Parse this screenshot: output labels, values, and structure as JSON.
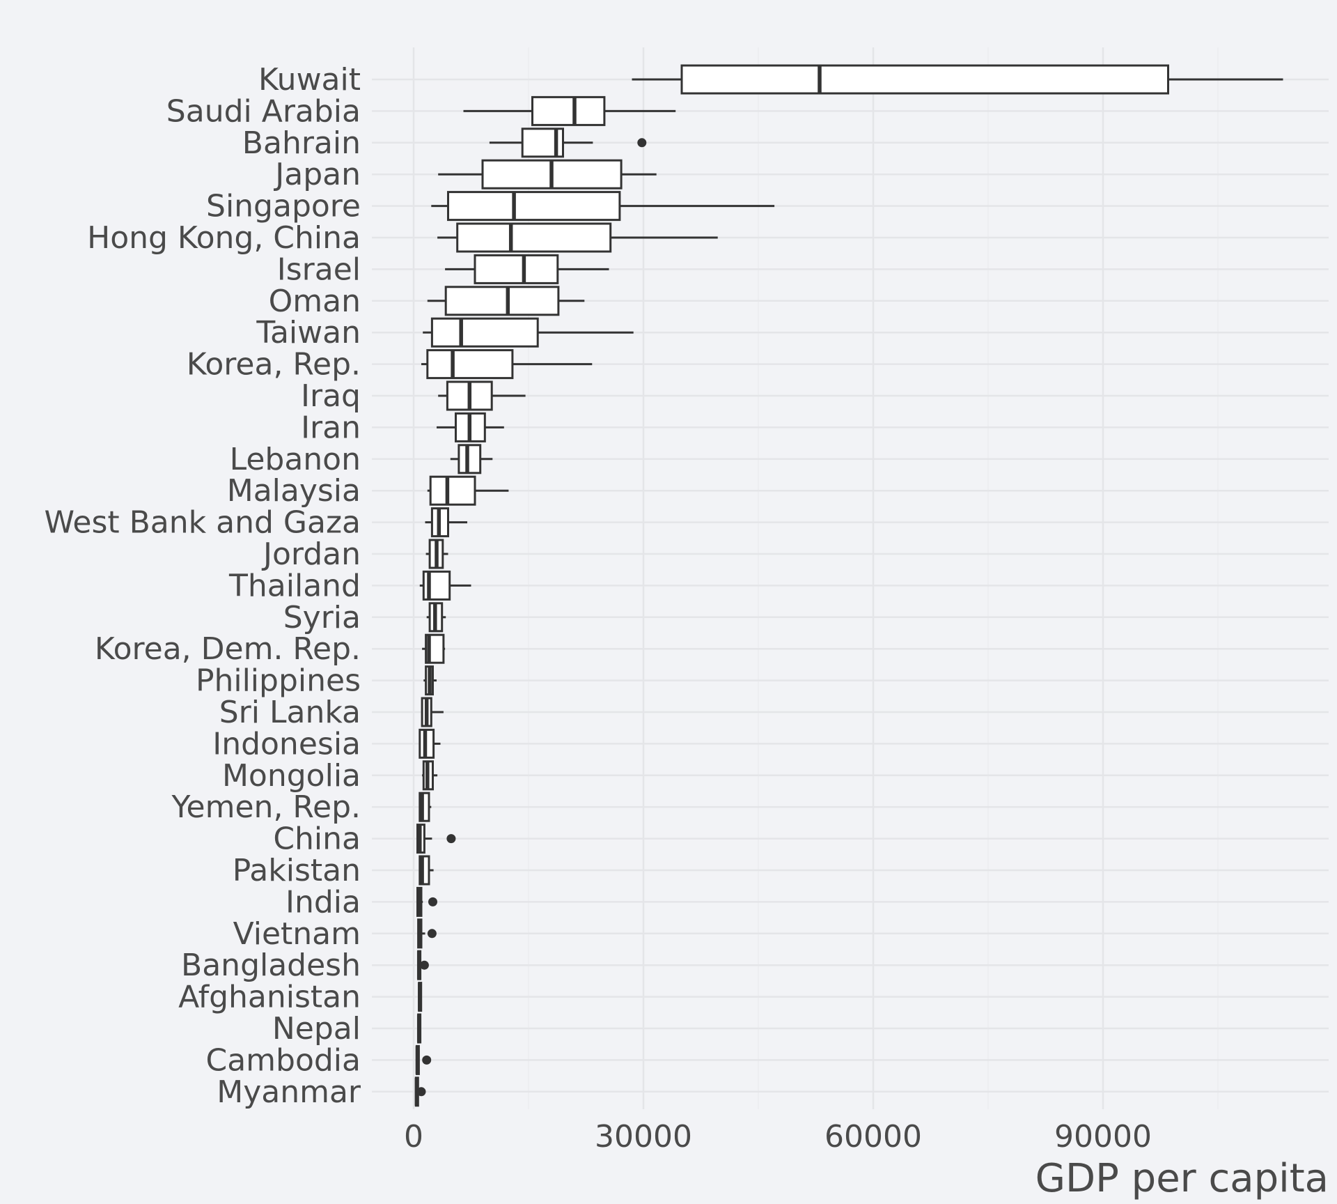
{
  "chart_data": {
    "type": "boxplot",
    "orientation": "horizontal",
    "title": "",
    "xlabel": "GDP per capita",
    "ylabel": "",
    "xlim": [
      -5000,
      115000
    ],
    "x_ticks": [
      0,
      30000,
      60000,
      90000
    ],
    "x_tick_labels": [
      "0",
      "30000",
      "60000",
      "90000"
    ],
    "grid": true,
    "legend": "none",
    "colors": {
      "background": "#f2f3f6",
      "box_fill": "#ffffff",
      "line": "#333333",
      "grid": "#e4e5e8",
      "text": "#4a4a4a"
    },
    "series": [
      {
        "name": "Kuwait",
        "min": 28500,
        "q1": 35000,
        "median": 53000,
        "q3": 98500,
        "max": 113500,
        "outliers": []
      },
      {
        "name": "Saudi Arabia",
        "min": 6500,
        "q1": 15500,
        "median": 21000,
        "q3": 24900,
        "max": 34200,
        "outliers": []
      },
      {
        "name": "Bahrain",
        "min": 9900,
        "q1": 14200,
        "median": 18600,
        "q3": 19500,
        "max": 23400,
        "outliers": [
          29800
        ]
      },
      {
        "name": "Japan",
        "min": 3200,
        "q1": 9000,
        "median": 18000,
        "q3": 27100,
        "max": 31700,
        "outliers": []
      },
      {
        "name": "Singapore",
        "min": 2300,
        "q1": 4500,
        "median": 13100,
        "q3": 26900,
        "max": 47100,
        "outliers": []
      },
      {
        "name": "Hong Kong, China",
        "min": 3100,
        "q1": 5700,
        "median": 12700,
        "q3": 25700,
        "max": 39700,
        "outliers": []
      },
      {
        "name": "Israel",
        "min": 4100,
        "q1": 8000,
        "median": 14400,
        "q3": 18800,
        "max": 25500,
        "outliers": []
      },
      {
        "name": "Oman",
        "min": 1800,
        "q1": 4200,
        "median": 12300,
        "q3": 18900,
        "max": 22300,
        "outliers": []
      },
      {
        "name": "Taiwan",
        "min": 1200,
        "q1": 2400,
        "median": 6200,
        "q3": 16200,
        "max": 28700,
        "outliers": []
      },
      {
        "name": "Korea, Rep.",
        "min": 1000,
        "q1": 1800,
        "median": 5100,
        "q3": 12900,
        "max": 23300,
        "outliers": []
      },
      {
        "name": "Iraq",
        "min": 3200,
        "q1": 4400,
        "median": 7300,
        "q3": 10200,
        "max": 14600,
        "outliers": []
      },
      {
        "name": "Iran",
        "min": 3000,
        "q1": 5500,
        "median": 7300,
        "q3": 9300,
        "max": 11800,
        "outliers": []
      },
      {
        "name": "Lebanon",
        "min": 4800,
        "q1": 5900,
        "median": 7000,
        "q3": 8700,
        "max": 10300,
        "outliers": []
      },
      {
        "name": "Malaysia",
        "min": 1800,
        "q1": 2200,
        "median": 4400,
        "q3": 8000,
        "max": 12400,
        "outliers": []
      },
      {
        "name": "West Bank and Gaza",
        "min": 1500,
        "q1": 2400,
        "median": 3300,
        "q3": 4500,
        "max": 7000,
        "outliers": []
      },
      {
        "name": "Jordan",
        "min": 1600,
        "q1": 2100,
        "median": 3000,
        "q3": 3800,
        "max": 4500,
        "outliers": []
      },
      {
        "name": "Thailand",
        "min": 800,
        "q1": 1300,
        "median": 2000,
        "q3": 4700,
        "max": 7500,
        "outliers": []
      },
      {
        "name": "Syria",
        "min": 1700,
        "q1": 2100,
        "median": 2800,
        "q3": 3700,
        "max": 4200,
        "outliers": []
      },
      {
        "name": "Korea, Dem. Rep.",
        "min": 1100,
        "q1": 1600,
        "median": 2000,
        "q3": 3900,
        "max": 4100,
        "outliers": []
      },
      {
        "name": "Philippines",
        "min": 1300,
        "q1": 1600,
        "median": 2100,
        "q3": 2500,
        "max": 3000,
        "outliers": []
      },
      {
        "name": "Sri Lanka",
        "min": 1100,
        "q1": 1100,
        "median": 1700,
        "q3": 2300,
        "max": 3900,
        "outliers": []
      },
      {
        "name": "Indonesia",
        "min": 700,
        "q1": 800,
        "median": 1500,
        "q3": 2600,
        "max": 3500,
        "outliers": []
      },
      {
        "name": "Mongolia",
        "min": 1100,
        "q1": 1300,
        "median": 1800,
        "q3": 2500,
        "max": 3100,
        "outliers": []
      },
      {
        "name": "Yemen, Rep.",
        "min": 800,
        "q1": 800,
        "median": 1100,
        "q3": 2000,
        "max": 2300,
        "outliers": []
      },
      {
        "name": "China",
        "min": 400,
        "q1": 500,
        "median": 800,
        "q3": 1400,
        "max": 2400,
        "outliers": [
          4900
        ]
      },
      {
        "name": "Pakistan",
        "min": 700,
        "q1": 800,
        "median": 1100,
        "q3": 2000,
        "max": 2600,
        "outliers": []
      },
      {
        "name": "India",
        "min": 500,
        "q1": 500,
        "median": 800,
        "q3": 1000,
        "max": 1200,
        "outliers": [
          2500
        ]
      },
      {
        "name": "Vietnam",
        "min": 600,
        "q1": 600,
        "median": 800,
        "q3": 1000,
        "max": 1500,
        "outliers": [
          2400
        ]
      },
      {
        "name": "Bangladesh",
        "min": 600,
        "q1": 600,
        "median": 700,
        "q3": 800,
        "max": 900,
        "outliers": [
          1400
        ]
      },
      {
        "name": "Afghanistan",
        "min": 600,
        "q1": 700,
        "median": 800,
        "q3": 800,
        "max": 900,
        "outliers": []
      },
      {
        "name": "Nepal",
        "min": 500,
        "q1": 600,
        "median": 700,
        "q3": 800,
        "max": 900,
        "outliers": []
      },
      {
        "name": "Cambodia",
        "min": 400,
        "q1": 400,
        "median": 500,
        "q3": 600,
        "max": 700,
        "outliers": [
          1700
        ]
      },
      {
        "name": "Myanmar",
        "min": 300,
        "q1": 300,
        "median": 400,
        "q3": 500,
        "max": 600,
        "outliers": [
          1000
        ]
      }
    ]
  }
}
